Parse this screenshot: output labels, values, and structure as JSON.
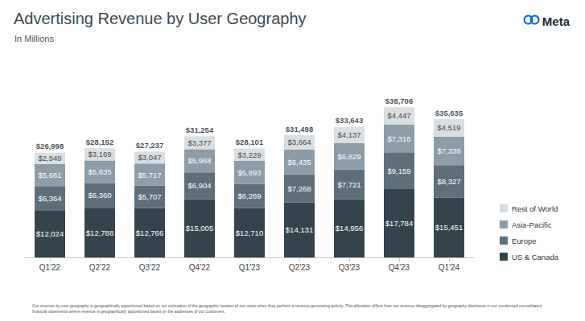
{
  "chart_data": {
    "type": "bar",
    "title": "Advertising Revenue by User Geography",
    "subtitle": "In Millions",
    "logo": "Meta",
    "note": "Our revenue by user geography is geographically apportioned based on our estimation of the geographic location of our users when they perform a revenue-generating activity. This allocation differs from our revenue disaggregated by geography disclosure in our condensed consolidated financial statements where revenue is geographically apportioned based on the addresses of our customers.",
    "categories": [
      "Q1'22",
      "Q2'22",
      "Q3'22",
      "Q4'22",
      "Q1'23",
      "Q2'23",
      "Q3'23",
      "Q4'23",
      "Q1'24"
    ],
    "series": [
      {
        "name": "US & Canada",
        "color": "#35444c",
        "values": [
          12024,
          12788,
          12766,
          15005,
          12710,
          14131,
          14956,
          17784,
          15451
        ],
        "value_labels": [
          "$12,024",
          "$12,788",
          "$12,766",
          "$15,005",
          "$12,710",
          "$14,131",
          "$14,956",
          "$17,784",
          "$15,451"
        ]
      },
      {
        "name": "Europe",
        "color": "#5e6f7b",
        "values": [
          6364,
          6360,
          5707,
          6904,
          6269,
          7268,
          7721,
          9159,
          8327
        ],
        "value_labels": [
          "$6,364",
          "$6,360",
          "$5,707",
          "$6,904",
          "$6,269",
          "$7,268",
          "$7,721",
          "$9,159",
          "$8,327"
        ]
      },
      {
        "name": "Asia-Pacific",
        "color": "#8d9ca6",
        "values": [
          5661,
          5835,
          5717,
          5968,
          5893,
          6435,
          6829,
          7316,
          7338
        ],
        "value_labels": [
          "$5,661",
          "$5,835",
          "$5,717",
          "$5,968",
          "$5,893",
          "$6,435",
          "$6,829",
          "$7,316",
          "$7,338"
        ]
      },
      {
        "name": "Rest of World",
        "color": "#d8dee2",
        "values": [
          2949,
          3169,
          3047,
          3377,
          3229,
          3664,
          4137,
          4447,
          4519
        ],
        "value_labels": [
          "$2,949",
          "$3,169",
          "$3,047",
          "$3,377",
          "$3,229",
          "$3,664",
          "$4,137",
          "$4,447",
          "$4,519"
        ]
      }
    ],
    "totals": [
      26998,
      28152,
      27237,
      31254,
      28101,
      31498,
      33643,
      38706,
      35635
    ],
    "total_labels": [
      "$26,998",
      "$28,152",
      "$27,237",
      "$31,254",
      "$28,101",
      "$31,498",
      "$33,643",
      "$38,706",
      "$35,635"
    ],
    "ylim": [
      0,
      40000
    ],
    "yticks": [
      0,
      40000
    ],
    "grid": false,
    "stacked": true,
    "data_labels": true,
    "tick_labels": "x",
    "legend": "right"
  }
}
